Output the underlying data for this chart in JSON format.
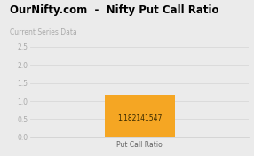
{
  "title_bold": "OurNifty.com  -  Nifty Put Call Ratio",
  "subtitle": "Current Series Data",
  "bar_value": 1.182141547,
  "bar_label": "1.182141547",
  "bar_color": "#F5A623",
  "bar_x": "Put Call Ratio",
  "ylim": [
    0,
    2.5
  ],
  "yticks": [
    0,
    0.5,
    1,
    1.5,
    2,
    2.5
  ],
  "background_color": "#ebebeb",
  "plot_bg_color": "#ebebeb",
  "title_fontsize": 8.5,
  "subtitle_fontsize": 5.5,
  "xlabel_fontsize": 5.5,
  "bar_label_fontsize": 5.5,
  "tick_fontsize": 5.5,
  "grid_color": "#d8d8d8"
}
